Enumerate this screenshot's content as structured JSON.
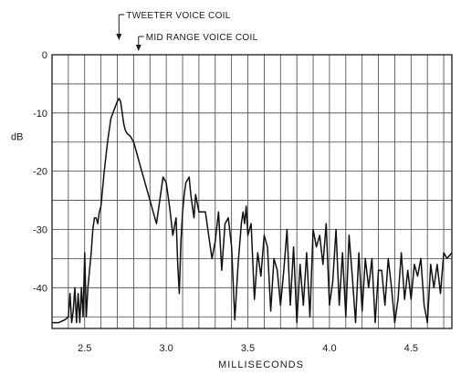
{
  "chart_data": {
    "type": "line",
    "xlabel": "MILLISECONDS",
    "ylabel": "dB",
    "xlim": [
      2.3,
      4.75
    ],
    "ylim": [
      -47,
      0
    ],
    "grid": true,
    "x_ticks": [
      2.5,
      3.0,
      3.5,
      4.0,
      4.5
    ],
    "x_tick_labels": [
      "2.5",
      "3.0",
      "3.5",
      "4.0",
      "4.5"
    ],
    "y_ticks": [
      0,
      -10,
      -20,
      -30,
      -40
    ],
    "y_tick_labels": [
      "0",
      "-10",
      "-20",
      "-30",
      "-40"
    ],
    "annotations": [
      {
        "text": "TWEETER VOICE COIL",
        "x": 2.71
      },
      {
        "text": "MID RANGE VOICE COIL",
        "x": 2.83
      }
    ],
    "series": [
      {
        "x": [
          2.3,
          2.34,
          2.38,
          2.4,
          2.41,
          2.42,
          2.43,
          2.44,
          2.45,
          2.46,
          2.47,
          2.48,
          2.49,
          2.5,
          2.51,
          2.52,
          2.53,
          2.54,
          2.55,
          2.56,
          2.57,
          2.58,
          2.59,
          2.6,
          2.62,
          2.64,
          2.66,
          2.68,
          2.7,
          2.71,
          2.72,
          2.73,
          2.74,
          2.75,
          2.76,
          2.78,
          2.8,
          2.82,
          2.84,
          2.86,
          2.88,
          2.9,
          2.92,
          2.94,
          2.96,
          2.98,
          3.0,
          3.02,
          3.04,
          3.06,
          3.07,
          3.08,
          3.09,
          3.1,
          3.11,
          3.12,
          3.14,
          3.15,
          3.16,
          3.17,
          3.18,
          3.2,
          3.22,
          3.24,
          3.26,
          3.28,
          3.3,
          3.32,
          3.34,
          3.36,
          3.38,
          3.4,
          3.42,
          3.44,
          3.46,
          3.47,
          3.48,
          3.49,
          3.5,
          3.52,
          3.54,
          3.56,
          3.58,
          3.6,
          3.62,
          3.64,
          3.66,
          3.68,
          3.7,
          3.72,
          3.74,
          3.76,
          3.78,
          3.8,
          3.82,
          3.84,
          3.86,
          3.88,
          3.9,
          3.92,
          3.94,
          3.96,
          3.98,
          4.0,
          4.02,
          4.04,
          4.06,
          4.08,
          4.1,
          4.12,
          4.14,
          4.16,
          4.18,
          4.2,
          4.22,
          4.24,
          4.26,
          4.28,
          4.3,
          4.32,
          4.34,
          4.36,
          4.38,
          4.4,
          4.42,
          4.44,
          4.46,
          4.48,
          4.5,
          4.52,
          4.54,
          4.56,
          4.58,
          4.6,
          4.62,
          4.64,
          4.66,
          4.68,
          4.7,
          4.72,
          4.75
        ],
        "y": [
          -46,
          -46,
          -45.5,
          -45,
          -41,
          -46,
          -44,
          -40,
          -46,
          -41,
          -46,
          -40,
          -45,
          -34,
          -45,
          -40,
          -37,
          -34,
          -30,
          -28,
          -28,
          -29,
          -27,
          -26,
          -20,
          -15,
          -11,
          -9.5,
          -8,
          -7.5,
          -8,
          -10,
          -12,
          -13,
          -13.5,
          -14,
          -15,
          -17,
          -19,
          -21,
          -23,
          -25,
          -27,
          -29,
          -25,
          -21,
          -22,
          -26,
          -31,
          -28,
          -36,
          -41,
          -32,
          -27,
          -24,
          -22,
          -21,
          -24,
          -26,
          -28,
          -24,
          -27,
          -27,
          -27,
          -31,
          -35,
          -32,
          -27,
          -37,
          -29,
          -28,
          -33,
          -45.5,
          -36,
          -29,
          -27,
          -29,
          -26,
          -31,
          -29,
          -42,
          -34,
          -38,
          -31,
          -33,
          -44,
          -35,
          -37,
          -43,
          -37,
          -30,
          -43,
          -33,
          -46,
          -36,
          -43,
          -34,
          -45,
          -30,
          -33,
          -31,
          -36,
          -29,
          -43,
          -39,
          -30,
          -43,
          -34,
          -45,
          -31,
          -38,
          -46,
          -34,
          -44,
          -35,
          -40,
          -35,
          -46,
          -37,
          -37,
          -43,
          -35,
          -40,
          -46,
          -42,
          -34,
          -42,
          -37,
          -42,
          -36,
          -38,
          -35,
          -43,
          -46,
          -36,
          -40,
          -36,
          -41,
          -34,
          -35,
          -34
        ]
      }
    ]
  }
}
